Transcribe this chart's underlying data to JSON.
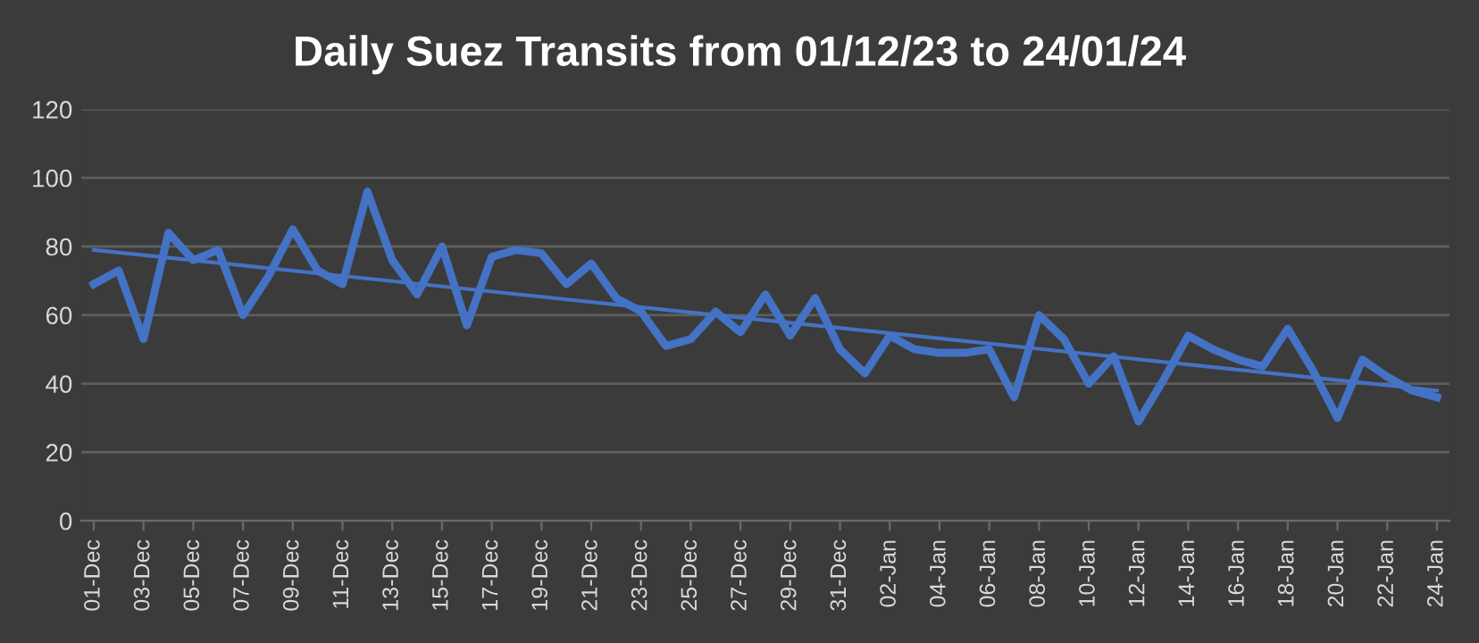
{
  "chart_data": {
    "type": "line",
    "title": "Daily Suez Transits from 01/12/23 to 24/01/24",
    "categories": [
      "01-Dec",
      null,
      "03-Dec",
      null,
      "05-Dec",
      null,
      "07-Dec",
      null,
      "09-Dec",
      null,
      "11-Dec",
      null,
      "13-Dec",
      null,
      "15-Dec",
      null,
      "17-Dec",
      null,
      "19-Dec",
      null,
      "21-Dec",
      null,
      "23-Dec",
      null,
      "25-Dec",
      null,
      "27-Dec",
      null,
      "29-Dec",
      null,
      "31-Dec",
      null,
      "02-Jan",
      null,
      "04-Jan",
      null,
      "06-Jan",
      null,
      "08-Jan",
      null,
      "10-Jan",
      null,
      "12-Jan",
      null,
      "14-Jan",
      null,
      "16-Jan",
      null,
      "18-Jan",
      null,
      "20-Jan",
      null,
      "22-Jan",
      null,
      "24-Jan"
    ],
    "series": [
      {
        "color": "#4472c4",
        "values": [
          69,
          73,
          53,
          84,
          76,
          79,
          60,
          71,
          85,
          73,
          69,
          96,
          76,
          66,
          80,
          57,
          77,
          79,
          78,
          69,
          75,
          65,
          61,
          51,
          53,
          61,
          55,
          66,
          54,
          65,
          50,
          43,
          54,
          50,
          49,
          49,
          50,
          36,
          60,
          53,
          40,
          48,
          29,
          41,
          54,
          50,
          47,
          45,
          56,
          44,
          30,
          47,
          42,
          38,
          36
        ]
      },
      {
        "type": "line",
        "color": "#4472c4",
        "x": [
          "01-Dec",
          "24-Jan"
        ],
        "values": [
          79,
          38
        ]
      }
    ],
    "ylim": [
      0,
      120
    ],
    "yticks": [
      0,
      20,
      40,
      60,
      80,
      100,
      120
    ],
    "grid": "y",
    "legend": false,
    "marker": "none",
    "line_style": "solid"
  }
}
